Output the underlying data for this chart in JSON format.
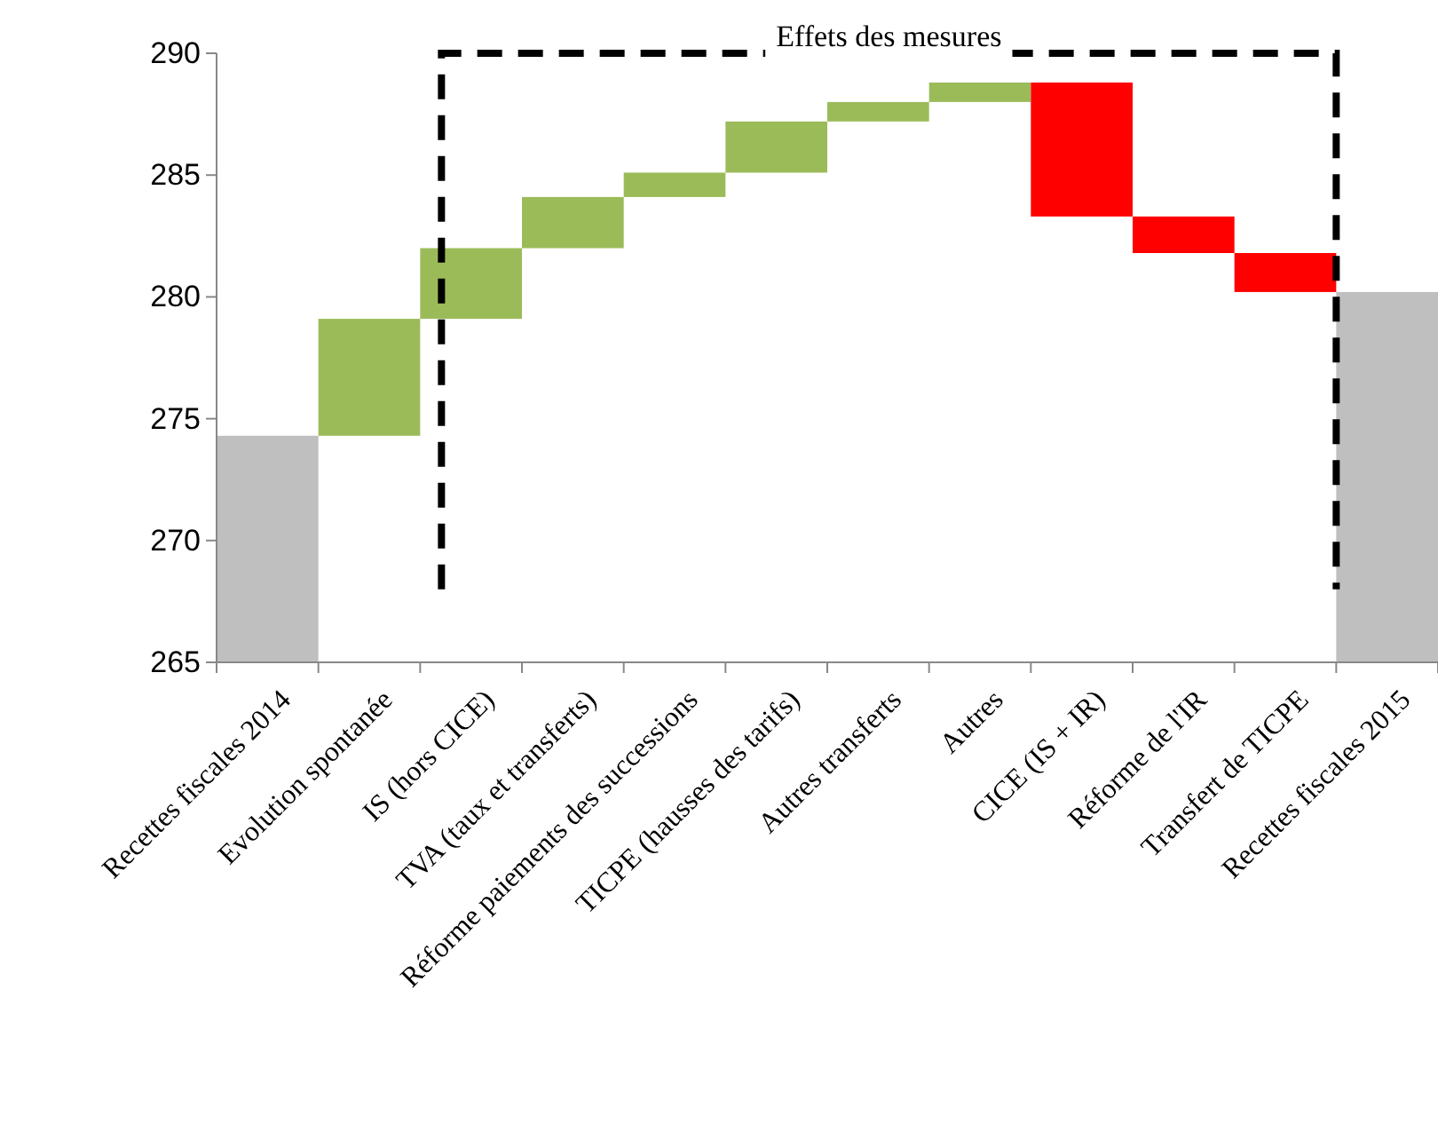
{
  "chart_data": {
    "type": "bar",
    "categories": [
      "Recettes fiscales 2014",
      "Evolution spontanée",
      "IS (hors CICE)",
      "TVA (taux et transferts)",
      "Réforme paiements des successions",
      "TICPE (hausses des tarifs)",
      "Autres transferts",
      "Autres",
      "CICE (IS + IR)",
      "Réforme de l'IR",
      "Transfert de TICPE",
      "Recettes fiscales 2015"
    ],
    "base": [
      265,
      274.3,
      279.1,
      282.0,
      284.1,
      285.1,
      287.2,
      288.0,
      288.8,
      283.3,
      281.8,
      265
    ],
    "values": [
      9.3,
      4.8,
      2.9,
      2.1,
      1.0,
      2.1,
      0.8,
      0.8,
      -5.5,
      -1.5,
      -1.6,
      15.2
    ],
    "colors": [
      "#bfbfbf",
      "#9bbb59",
      "#9bbb59",
      "#9bbb59",
      "#9bbb59",
      "#9bbb59",
      "#9bbb59",
      "#9bbb59",
      "#ff0000",
      "#ff0000",
      "#ff0000",
      "#bfbfbf"
    ],
    "ylim": [
      265,
      290
    ],
    "yticks": [
      265,
      270,
      275,
      280,
      285,
      290
    ],
    "annotations": [
      "Effets des mesures"
    ]
  }
}
